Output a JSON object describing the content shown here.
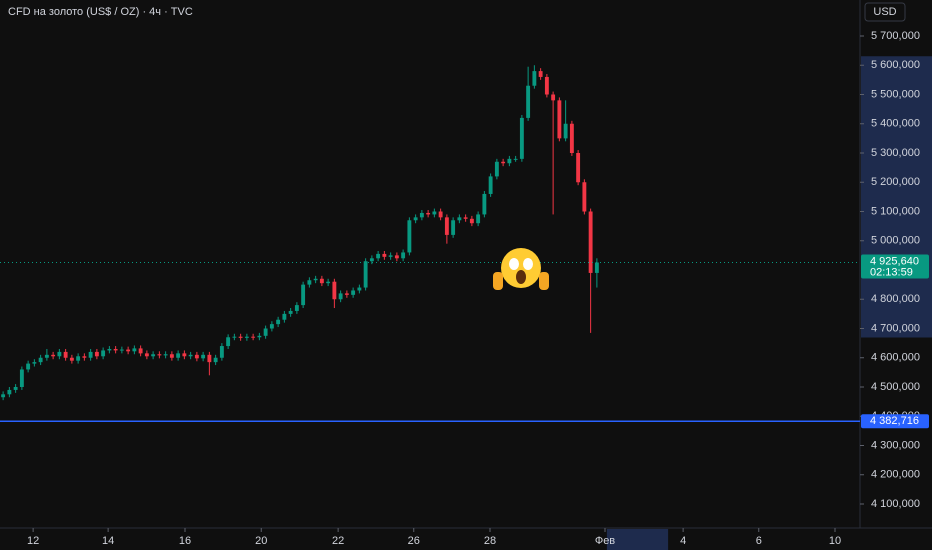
{
  "chart_data": {
    "type": "candlestick",
    "title": "CFD на золото (US$ / OZ) · 4ч · TVC",
    "currency": "USD",
    "up_color": "#089981",
    "down_color": "#f23645",
    "open": [
      4465000,
      4475000,
      4490000,
      4500000,
      4560000,
      4580000,
      4585000,
      4600000,
      4610000,
      4605000,
      4620000,
      4600000,
      4590000,
      4605000,
      4600000,
      4620000,
      4605000,
      4625000,
      4630000,
      4625000,
      4628000,
      4622000,
      4632000,
      4615000,
      4605000,
      4612000,
      4608000,
      4612000,
      4600000,
      4615000,
      4605000,
      4610000,
      4598000,
      4610000,
      4585000,
      4600000,
      4640000,
      4670000,
      4672000,
      4668000,
      4672000,
      4670000,
      4675000,
      4700000,
      4715000,
      4730000,
      4750000,
      4760000,
      4780000,
      4850000,
      4865000,
      4870000,
      4855000,
      4860000,
      4800000,
      4820000,
      4815000,
      4830000,
      4840000,
      4930000,
      4940000,
      4955000,
      4945000,
      4950000,
      4940000,
      4960000,
      5070000,
      5080000,
      5095000,
      5090000,
      5100000,
      5080000,
      5020000,
      5070000,
      5080000,
      5075000,
      5060000,
      5090000,
      5160000,
      5220000,
      5270000,
      5265000,
      5280000,
      5280000,
      5420000,
      5530000,
      5580000,
      5560000,
      5500000,
      5480000,
      5350000,
      5400000,
      5300000,
      5200000,
      5100000,
      4890000
    ],
    "high": [
      4485000,
      4500000,
      4510000,
      4570000,
      4590000,
      4595000,
      4610000,
      4630000,
      4620000,
      4630000,
      4630000,
      4610000,
      4615000,
      4615000,
      4630000,
      4630000,
      4635000,
      4640000,
      4640000,
      4638000,
      4638000,
      4642000,
      4642000,
      4625000,
      4622000,
      4622000,
      4622000,
      4622000,
      4625000,
      4625000,
      4620000,
      4620000,
      4620000,
      4620000,
      4610000,
      4650000,
      4680000,
      4682000,
      4682000,
      4682000,
      4682000,
      4685000,
      4710000,
      4725000,
      4740000,
      4760000,
      4770000,
      4790000,
      4860000,
      4875000,
      4880000,
      4880000,
      4870000,
      4870000,
      4830000,
      4830000,
      4840000,
      4850000,
      4940000,
      4950000,
      4965000,
      4965000,
      4960000,
      4960000,
      4970000,
      5080000,
      5090000,
      5105000,
      5105000,
      5110000,
      5110000,
      5090000,
      5080000,
      5090000,
      5090000,
      5085000,
      5100000,
      5170000,
      5230000,
      5280000,
      5280000,
      5290000,
      5290000,
      5430000,
      5595000,
      5600000,
      5590000,
      5570000,
      5510000,
      5490000,
      5480000,
      5410000,
      5310000,
      5210000,
      5110000,
      4940000
    ],
    "low": [
      4455000,
      4465000,
      4480000,
      4490000,
      4550000,
      4570000,
      4575000,
      4590000,
      4595000,
      4595000,
      4590000,
      4580000,
      4580000,
      4590000,
      4590000,
      4595000,
      4595000,
      4615000,
      4615000,
      4615000,
      4612000,
      4612000,
      4605000,
      4595000,
      4595000,
      4598000,
      4598000,
      4590000,
      4590000,
      4595000,
      4595000,
      4588000,
      4588000,
      4540000,
      4575000,
      4590000,
      4630000,
      4660000,
      4658000,
      4658000,
      4660000,
      4660000,
      4665000,
      4690000,
      4705000,
      4720000,
      4740000,
      4750000,
      4770000,
      4840000,
      4855000,
      4845000,
      4845000,
      4770000,
      4790000,
      4805000,
      4805000,
      4820000,
      4830000,
      4920000,
      4930000,
      4935000,
      4935000,
      4930000,
      4930000,
      4950000,
      5060000,
      5070000,
      5080000,
      5080000,
      5070000,
      4990000,
      5010000,
      5060000,
      5065000,
      5050000,
      5050000,
      5080000,
      5150000,
      5210000,
      5255000,
      5255000,
      5270000,
      5270000,
      5410000,
      5520000,
      5550000,
      5490000,
      5090000,
      5340000,
      5340000,
      5290000,
      5190000,
      5090000,
      4685000,
      4840000
    ],
    "close": [
      4475000,
      4490000,
      4500000,
      4560000,
      4580000,
      4585000,
      4600000,
      4610000,
      4605000,
      4620000,
      4600000,
      4590000,
      4605000,
      4600000,
      4620000,
      4605000,
      4625000,
      4630000,
      4625000,
      4628000,
      4622000,
      4632000,
      4615000,
      4605000,
      4612000,
      4608000,
      4612000,
      4600000,
      4615000,
      4605000,
      4610000,
      4598000,
      4610000,
      4585000,
      4600000,
      4640000,
      4670000,
      4672000,
      4668000,
      4672000,
      4670000,
      4675000,
      4700000,
      4715000,
      4730000,
      4750000,
      4760000,
      4780000,
      4850000,
      4865000,
      4870000,
      4855000,
      4860000,
      4800000,
      4820000,
      4815000,
      4830000,
      4840000,
      4930000,
      4940000,
      4955000,
      4945000,
      4950000,
      4940000,
      4960000,
      5070000,
      5080000,
      5095000,
      5090000,
      5100000,
      5080000,
      5020000,
      5070000,
      5080000,
      5075000,
      5060000,
      5090000,
      5160000,
      5220000,
      5270000,
      5265000,
      5280000,
      5280000,
      5420000,
      5530000,
      5580000,
      5560000,
      5500000,
      5480000,
      5350000,
      5400000,
      5300000,
      5200000,
      5100000,
      4890000,
      4925640
    ],
    "xlim": [
      0,
      137.6
    ],
    "xticks": [
      {
        "value": 5.3,
        "label": "12"
      },
      {
        "value": 17.3,
        "label": "14"
      },
      {
        "value": 29.6,
        "label": "16"
      },
      {
        "value": 41.8,
        "label": "20"
      },
      {
        "value": 54.1,
        "label": "22"
      },
      {
        "value": 66.2,
        "label": "26"
      },
      {
        "value": 78.4,
        "label": "28"
      },
      {
        "value": 96.8,
        "label": "Фев"
      },
      {
        "value": 109.3,
        "label": "4"
      },
      {
        "value": 121.4,
        "label": "6"
      },
      {
        "value": 133.6,
        "label": "10"
      }
    ],
    "highlight_xlim": [
      97.1,
      106.9
    ],
    "ylim": [
      4017949,
      5823077
    ],
    "yticks": [
      {
        "value": 5700000,
        "label": "5 700,000"
      },
      {
        "value": 5600000,
        "label": "5 600,000"
      },
      {
        "value": 5500000,
        "label": "5 500,000"
      },
      {
        "value": 5400000,
        "label": "5 400,000"
      },
      {
        "value": 5300000,
        "label": "5 300,000"
      },
      {
        "value": 5200000,
        "label": "5 200,000"
      },
      {
        "value": 5100000,
        "label": "5 100,000"
      },
      {
        "value": 5000000,
        "label": "5 000,000"
      },
      {
        "value": 4800000,
        "label": "4 800,000"
      },
      {
        "value": 4700000,
        "label": "4 700,000"
      },
      {
        "value": 4600000,
        "label": "4 600,000"
      },
      {
        "value": 4500000,
        "label": "4 500,000"
      },
      {
        "value": 4400000,
        "label": "4 400,000"
      },
      {
        "value": 4300000,
        "label": "4 300,000"
      },
      {
        "value": 4200000,
        "label": "4 200,000"
      },
      {
        "value": 4100000,
        "label": "4 100,000"
      }
    ],
    "highlight_ylim": [
      4700000,
      5600000
    ],
    "current_price": {
      "value": 4925640,
      "label": "4 925,640",
      "countdown": "02:13:59"
    },
    "horizontal_line": {
      "value": 4382716,
      "label": "4 382,716",
      "color": "#2962ff"
    }
  }
}
